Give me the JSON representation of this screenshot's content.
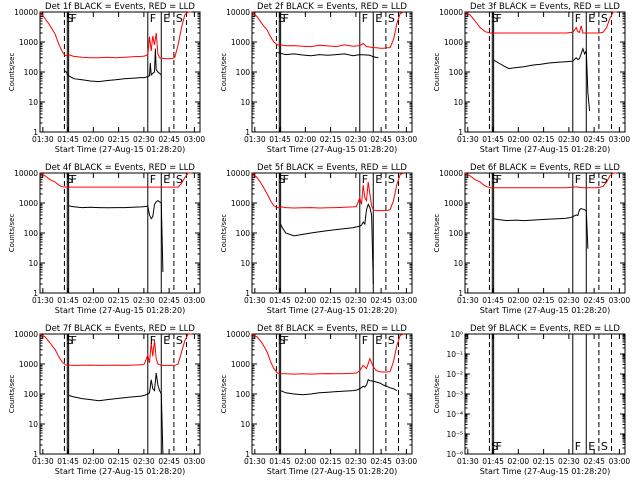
{
  "figure": {
    "xlabel": "Start Time (27-Aug-15 01:28:20)",
    "ylabel": "Counts/sec",
    "xticks": [
      "01:30",
      "01:45",
      "02:00",
      "02:15",
      "02:30",
      "02:45",
      "03:00"
    ],
    "ylog_ticks": [
      "1",
      "10",
      "100",
      "1000",
      "10000"
    ],
    "zero_ticks": [
      "10⁰",
      "10⁻¹",
      "10⁻²",
      "10⁻³",
      "10⁻⁴",
      "10⁻⁵",
      "10⁻⁶"
    ],
    "colors": {
      "events": "#000000",
      "lld": "#ff0000",
      "axes": "#000000"
    },
    "markers": [
      {
        "label": "S",
        "time_min": 14.5,
        "style": "dashed"
      },
      {
        "label": "F",
        "time_min": 17.0,
        "style": "solid"
      },
      {
        "label": "F",
        "time_min": 64.0,
        "style": "solid"
      },
      {
        "label": "E",
        "time_min": 72.0,
        "style": "solid"
      },
      {
        "label": "S",
        "time_min": 79.5,
        "style": "dashed"
      },
      {
        "label": "",
        "time_min": 87.0,
        "style": "dashed"
      }
    ]
  },
  "chart_data": [
    {
      "type": "line",
      "title": "Det 1f BLACK = Events, RED = LLD",
      "yscale": "log",
      "ylim": [
        1,
        10000
      ],
      "xlim_minutes": [
        0,
        95
      ],
      "series": [
        {
          "name": "BLACK = Events",
          "color": "#000000",
          "x": [
            13,
            15,
            17,
            20,
            25,
            30,
            35,
            40,
            45,
            50,
            55,
            60,
            62,
            64,
            65,
            65.5,
            66,
            67,
            68,
            68.5,
            69,
            70,
            71,
            72
          ],
          "y": [
            null,
            110,
            75,
            60,
            55,
            50,
            48,
            52,
            55,
            60,
            62,
            65,
            65,
            70,
            75,
            200,
            80,
            90,
            100,
            600,
            120,
            100,
            90,
            80
          ]
        },
        {
          "name": "RED = LLD",
          "color": "#ff0000",
          "x": [
            0,
            3,
            6,
            9,
            11,
            13,
            15,
            17,
            20,
            25,
            30,
            35,
            40,
            45,
            50,
            55,
            60,
            62,
            64,
            65,
            66,
            67,
            68,
            69,
            70,
            71,
            72,
            74,
            76,
            78,
            80,
            82,
            84,
            86,
            88,
            90
          ],
          "y": [
            10000,
            6000,
            3500,
            1800,
            900,
            500,
            350,
            380,
            330,
            310,
            300,
            300,
            310,
            300,
            310,
            320,
            330,
            340,
            380,
            1500,
            500,
            1600,
            800,
            2000,
            400,
            300,
            290,
            280,
            280,
            280,
            300,
            800,
            3000,
            8000,
            10000,
            10000
          ]
        }
      ]
    },
    {
      "type": "line",
      "title": "Det 2f BLACK = Events, RED = LLD",
      "yscale": "log",
      "ylim": [
        1,
        10000
      ],
      "xlim_minutes": [
        0,
        95
      ],
      "series": [
        {
          "name": "BLACK = Events",
          "color": "#000000",
          "x": [
            15,
            17,
            20,
            25,
            30,
            35,
            40,
            45,
            50,
            55,
            60,
            64,
            68,
            70,
            72,
            75
          ],
          "y": [
            450,
            420,
            380,
            400,
            370,
            350,
            380,
            360,
            380,
            400,
            350,
            380,
            370,
            360,
            320,
            300
          ]
        },
        {
          "name": "RED = LLD",
          "color": "#ff0000",
          "x": [
            0,
            3,
            6,
            9,
            11,
            13,
            15,
            17,
            20,
            25,
            30,
            35,
            40,
            45,
            50,
            55,
            60,
            64,
            66,
            68,
            70,
            72,
            74,
            76,
            78,
            80,
            82,
            84,
            86,
            88,
            90
          ],
          "y": [
            10000,
            7000,
            4000,
            2500,
            1500,
            1000,
            800,
            800,
            750,
            760,
            720,
            700,
            780,
            740,
            700,
            800,
            720,
            760,
            900,
            700,
            680,
            650,
            640,
            620,
            620,
            640,
            650,
            1200,
            4000,
            9000,
            10000
          ]
        }
      ]
    },
    {
      "type": "line",
      "title": "Det 3f BLACK = Events, RED = LLD",
      "yscale": "log",
      "ylim": [
        1,
        10000
      ],
      "xlim_minutes": [
        0,
        95
      ],
      "series": [
        {
          "name": "BLACK = Events",
          "color": "#000000",
          "x": [
            17,
            20,
            23,
            26,
            30,
            35,
            40,
            45,
            50,
            55,
            60,
            64,
            66,
            67,
            68,
            70,
            71,
            72,
            73,
            74
          ],
          "y": [
            250,
            200,
            160,
            130,
            140,
            150,
            170,
            180,
            200,
            210,
            220,
            230,
            300,
            260,
            280,
            600,
            400,
            500,
            20,
            5
          ]
        },
        {
          "name": "RED = LLD",
          "color": "#ff0000",
          "x": [
            0,
            3,
            6,
            9,
            12,
            15,
            17,
            20,
            30,
            40,
            50,
            60,
            64,
            66,
            67,
            68,
            69,
            70,
            72,
            74,
            76,
            78,
            80,
            82,
            84,
            86,
            88,
            90
          ],
          "y": [
            10000,
            8000,
            5000,
            3000,
            2200,
            2000,
            2000,
            2000,
            2000,
            2000,
            2000,
            2000,
            2100,
            3000,
            2200,
            2100,
            3500,
            2000,
            2000,
            2000,
            2000,
            2000,
            2000,
            2100,
            3000,
            6000,
            10000,
            10000
          ]
        }
      ]
    },
    {
      "type": "line",
      "title": "Det 4f BLACK = Events, RED = LLD",
      "yscale": "log",
      "ylim": [
        1,
        10000
      ],
      "xlim_minutes": [
        0,
        95
      ],
      "series": [
        {
          "name": "BLACK = Events",
          "color": "#000000",
          "x": [
            17,
            20,
            25,
            30,
            35,
            40,
            45,
            50,
            55,
            60,
            62,
            64,
            65,
            66,
            67,
            68,
            69,
            70,
            71,
            72,
            73
          ],
          "y": [
            800,
            750,
            700,
            720,
            700,
            690,
            700,
            700,
            720,
            740,
            760,
            780,
            400,
            300,
            350,
            900,
            1100,
            1200,
            1100,
            1000,
            5
          ]
        },
        {
          "name": "RED = LLD",
          "color": "#ff0000",
          "x": [
            0,
            3,
            6,
            9,
            11,
            13,
            15,
            17,
            20,
            30,
            40,
            50,
            60,
            65,
            68,
            70,
            72,
            74,
            76,
            78,
            80,
            82,
            84,
            86,
            88,
            90
          ],
          "y": [
            10000,
            8000,
            6000,
            5000,
            4000,
            3500,
            3400,
            3400,
            3400,
            3400,
            3400,
            3400,
            3400,
            3400,
            3400,
            3400,
            3400,
            3400,
            3400,
            3400,
            3400,
            3400,
            4500,
            7000,
            10000,
            10000
          ]
        }
      ]
    },
    {
      "type": "line",
      "title": "Det 5f BLACK = Events, RED = LLD",
      "yscale": "log",
      "ylim": [
        1,
        10000
      ],
      "xlim_minutes": [
        0,
        95
      ],
      "series": [
        {
          "name": "BLACK = Events",
          "color": "#000000",
          "x": [
            17,
            18,
            20,
            25,
            30,
            35,
            40,
            45,
            50,
            55,
            60,
            62,
            64,
            65,
            66,
            67,
            68,
            69,
            70,
            71,
            72
          ],
          "y": [
            200,
            150,
            100,
            80,
            90,
            100,
            110,
            120,
            130,
            140,
            150,
            160,
            170,
            180,
            230,
            200,
            600,
            900,
            700,
            400,
            2
          ]
        },
        {
          "name": "RED = LLD",
          "color": "#ff0000",
          "x": [
            0,
            3,
            6,
            9,
            11,
            13,
            15,
            17,
            20,
            25,
            30,
            35,
            40,
            45,
            50,
            55,
            60,
            62,
            64,
            65,
            66,
            67,
            68,
            69,
            70,
            71,
            72,
            74,
            76,
            78,
            80,
            82,
            84,
            86,
            88,
            90
          ],
          "y": [
            10000,
            7000,
            4000,
            2000,
            1200,
            800,
            700,
            750,
            700,
            680,
            690,
            700,
            680,
            690,
            700,
            720,
            740,
            760,
            1500,
            900,
            4000,
            1500,
            1200,
            5000,
            2000,
            800,
            600,
            560,
            560,
            560,
            560,
            600,
            1200,
            4000,
            9000,
            10000
          ]
        }
      ]
    },
    {
      "type": "line",
      "title": "Det 6f BLACK = Events, RED = LLD",
      "yscale": "log",
      "ylim": [
        1,
        10000
      ],
      "xlim_minutes": [
        0,
        95
      ],
      "series": [
        {
          "name": "BLACK = Events",
          "color": "#000000",
          "x": [
            17,
            20,
            25,
            30,
            35,
            40,
            45,
            50,
            55,
            60,
            62,
            64,
            66,
            67,
            68,
            69,
            70,
            71,
            72,
            73
          ],
          "y": [
            300,
            280,
            260,
            270,
            260,
            270,
            280,
            290,
            300,
            310,
            320,
            350,
            400,
            380,
            600,
            650,
            620,
            600,
            550,
            30
          ]
        },
        {
          "name": "RED = LLD",
          "color": "#ff0000",
          "x": [
            0,
            3,
            6,
            9,
            11,
            13,
            15,
            17,
            20,
            30,
            40,
            50,
            60,
            64,
            66,
            68,
            70,
            72,
            74,
            76,
            78,
            80,
            82,
            84,
            86,
            88,
            90
          ],
          "y": [
            10000,
            8000,
            6000,
            5000,
            4000,
            3500,
            3200,
            3200,
            3200,
            3200,
            3200,
            3200,
            3200,
            3400,
            3500,
            3300,
            3200,
            3200,
            3200,
            3200,
            3200,
            3300,
            3600,
            5000,
            8000,
            10000,
            10000
          ]
        }
      ]
    },
    {
      "type": "line",
      "title": "Det 7f BLACK = Events, RED = LLD",
      "yscale": "log",
      "ylim": [
        1,
        10000
      ],
      "xlim_minutes": [
        0,
        95
      ],
      "series": [
        {
          "name": "BLACK = Events",
          "color": "#000000",
          "x": [
            17,
            20,
            25,
            30,
            35,
            40,
            45,
            50,
            55,
            60,
            62,
            64,
            65,
            66,
            67,
            68,
            69,
            70,
            71,
            72,
            73
          ],
          "y": [
            90,
            80,
            70,
            65,
            60,
            65,
            70,
            75,
            80,
            85,
            90,
            100,
            110,
            300,
            150,
            130,
            500,
            200,
            130,
            100,
            1
          ]
        },
        {
          "name": "RED = LLD",
          "color": "#ff0000",
          "x": [
            0,
            3,
            6,
            9,
            11,
            13,
            15,
            17,
            20,
            25,
            30,
            35,
            40,
            45,
            50,
            55,
            60,
            62,
            64,
            65,
            66,
            67,
            68,
            69,
            70,
            72,
            74,
            76,
            78,
            80,
            82,
            84,
            86,
            88,
            90
          ],
          "y": [
            10000,
            8000,
            5000,
            3000,
            1800,
            1200,
            950,
            920,
            900,
            910,
            920,
            900,
            910,
            920,
            900,
            920,
            940,
            1000,
            2000,
            1100,
            5000,
            1800,
            6000,
            1500,
            1000,
            900,
            900,
            900,
            900,
            900,
            1000,
            2500,
            6000,
            10000,
            10000
          ]
        }
      ]
    },
    {
      "type": "line",
      "title": "Det 8f BLACK = Events, RED = LLD",
      "yscale": "log",
      "ylim": [
        1,
        10000
      ],
      "xlim_minutes": [
        0,
        95
      ],
      "series": [
        {
          "name": "BLACK = Events",
          "color": "#000000",
          "x": [
            17,
            20,
            25,
            30,
            35,
            40,
            45,
            50,
            55,
            60,
            62,
            64,
            66,
            67,
            68,
            69,
            70,
            72,
            74,
            76,
            78,
            80,
            82,
            84,
            86
          ],
          "y": [
            130,
            110,
            100,
            95,
            100,
            110,
            115,
            120,
            125,
            130,
            135,
            150,
            180,
            170,
            200,
            300,
            280,
            270,
            250,
            230,
            200,
            180,
            160,
            150,
            130
          ]
        },
        {
          "name": "RED = LLD",
          "color": "#ff0000",
          "x": [
            0,
            3,
            6,
            9,
            11,
            13,
            15,
            17,
            20,
            25,
            30,
            35,
            40,
            45,
            50,
            55,
            60,
            62,
            64,
            66,
            68,
            70,
            72,
            74,
            76,
            78,
            80,
            82,
            84,
            86,
            88,
            90
          ],
          "y": [
            10000,
            8000,
            5000,
            2500,
            1200,
            700,
            500,
            480,
            470,
            460,
            470,
            460,
            470,
            480,
            470,
            480,
            490,
            500,
            600,
            900,
            700,
            1500,
            800,
            600,
            550,
            540,
            540,
            560,
            1200,
            4000,
            9000,
            10000
          ]
        }
      ]
    },
    {
      "type": "line",
      "title": "Det 9f BLACK = Events, RED = LLD",
      "yscale": "log",
      "ylim": [
        1e-06,
        1
      ],
      "xlim_minutes": [
        0,
        95
      ],
      "series": []
    }
  ]
}
